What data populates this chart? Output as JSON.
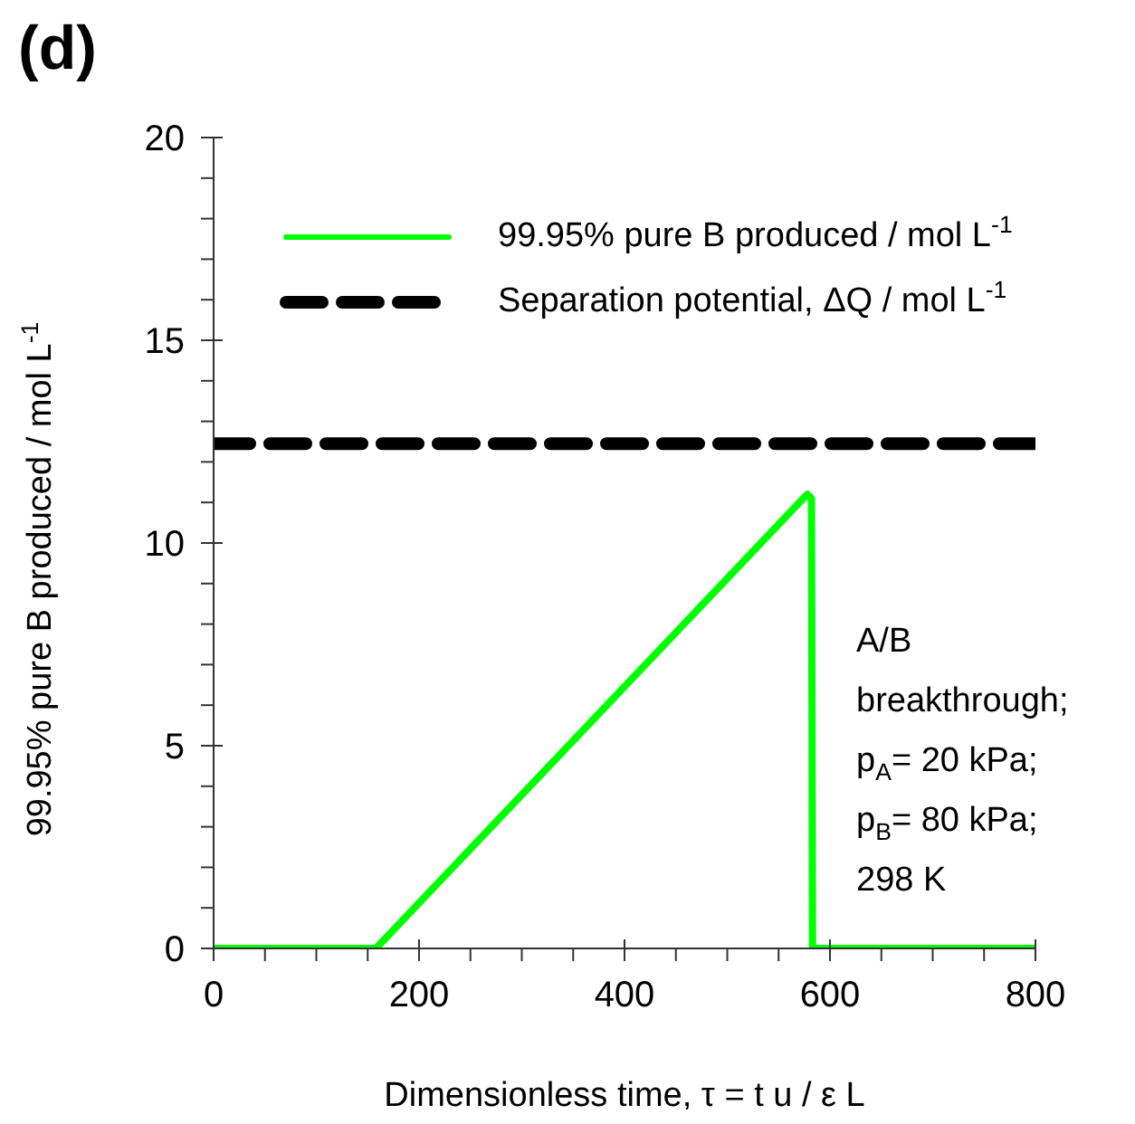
{
  "chart_data": {
    "type": "line",
    "title": "(d)",
    "xlabel": "Dimensionless time, τ = t u / ε L",
    "ylabel": "99.95% pure B produced / mol L$^{-1}$",
    "xlim": [
      0,
      800
    ],
    "ylim": [
      0,
      20
    ],
    "xticks": [
      0,
      {
        "value": 50,
        "label": null
      },
      {
        "value": 100,
        "label": null
      },
      {
        "value": 150,
        "label": null
      },
      200,
      {
        "value": 250,
        "label": null
      },
      {
        "value": 300,
        "label": null
      },
      {
        "value": 350,
        "label": null
      },
      400,
      {
        "value": 450,
        "label": null
      },
      {
        "value": 500,
        "label": null
      },
      {
        "value": 550,
        "label": null
      },
      600,
      {
        "value": 650,
        "label": null
      },
      {
        "value": 700,
        "label": null
      },
      {
        "value": 750,
        "label": null
      },
      800
    ],
    "yticks": [
      0,
      {
        "value": 1,
        "label": null
      },
      {
        "value": 2,
        "label": null
      },
      {
        "value": 3,
        "label": null
      },
      {
        "value": 4,
        "label": null
      },
      5,
      {
        "value": 6,
        "label": null
      },
      {
        "value": 7,
        "label": null
      },
      {
        "value": 8,
        "label": null
      },
      {
        "value": 9,
        "label": null
      },
      10,
      {
        "value": 11,
        "label": null
      },
      {
        "value": 12,
        "label": null
      },
      {
        "value": 13,
        "label": null
      },
      {
        "value": 14,
        "label": null
      },
      15,
      {
        "value": 16,
        "label": null
      },
      {
        "value": 17,
        "label": null
      },
      {
        "value": 18,
        "label": null
      },
      {
        "value": 19,
        "label": null
      },
      20
    ],
    "grid": false,
    "legend": "top",
    "marker": "none",
    "series": [
      {
        "name": "99.95% pure B produced / mol L$^{-1}$",
        "color": "#00ff00",
        "line_style": "solid",
        "x": [
          0,
          158,
          574,
          578,
          582,
          583,
          800
        ],
        "values": [
          0,
          0,
          11.1,
          11.2,
          11.1,
          0,
          0
        ]
      },
      {
        "name": "Separation potential, ΔQ / mol L$^{-1}$",
        "color": "#000000",
        "line_style": "dashed",
        "x": [
          0,
          800
        ],
        "values": [
          12.45,
          12.45
        ]
      }
    ],
    "annotations": [
      "A/B",
      "breakthrough;",
      "p$_{A}$= 20  kPa;",
      "p$_{B}$= 80  kPa;",
      "298 K"
    ]
  }
}
